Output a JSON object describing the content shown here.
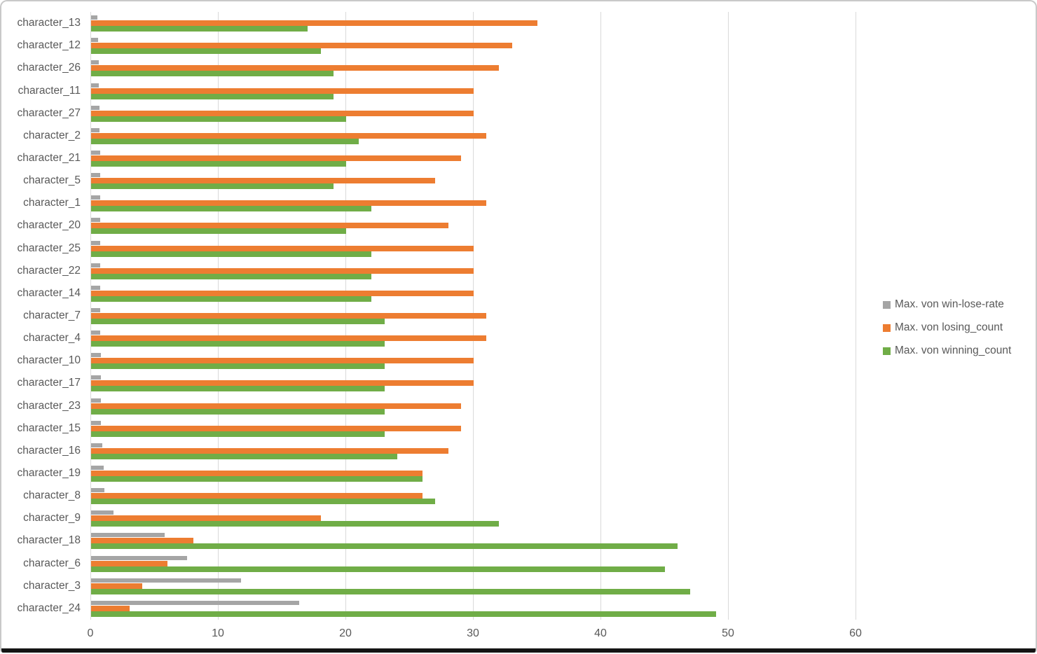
{
  "chart_data": {
    "type": "bar",
    "orientation": "horizontal",
    "title": "",
    "xlabel": "",
    "ylabel": "",
    "xlim": [
      0,
      66
    ],
    "x_ticks": [
      "0",
      "10",
      "20",
      "30",
      "40",
      "50",
      "60"
    ],
    "grid": "vertical",
    "legend_position": "right",
    "categories": [
      "character_13",
      "character_12",
      "character_26",
      "character_11",
      "character_27",
      "character_2",
      "character_21",
      "character_5",
      "character_1",
      "character_20",
      "character_25",
      "character_22",
      "character_14",
      "character_7",
      "character_4",
      "character_10",
      "character_17",
      "character_23",
      "character_15",
      "character_16",
      "character_19",
      "character_8",
      "character_9",
      "character_18",
      "character_6",
      "character_3",
      "character_24"
    ],
    "series": [
      {
        "name": "Max. von win-lose-rate",
        "color": "#a5a5a5",
        "values": [
          0.49,
          0.55,
          0.59,
          0.63,
          0.67,
          0.68,
          0.69,
          0.7,
          0.71,
          0.71,
          0.73,
          0.73,
          0.73,
          0.74,
          0.74,
          0.77,
          0.77,
          0.79,
          0.79,
          0.86,
          1.0,
          1.04,
          1.78,
          5.75,
          7.5,
          11.75,
          16.33
        ]
      },
      {
        "name": "Max. von losing_count",
        "color": "#ed7d31",
        "values": [
          35,
          33,
          32,
          30,
          30,
          31,
          29,
          27,
          31,
          28,
          30,
          30,
          30,
          31,
          31,
          30,
          30,
          29,
          29,
          28,
          26,
          26,
          18,
          8,
          6,
          4,
          3
        ]
      },
      {
        "name": "Max. von winning_count",
        "color": "#70ad47",
        "values": [
          17,
          18,
          19,
          19,
          20,
          21,
          20,
          19,
          22,
          20,
          22,
          22,
          22,
          23,
          23,
          23,
          23,
          23,
          23,
          24,
          26,
          27,
          32,
          46,
          45,
          47,
          49
        ]
      }
    ]
  },
  "colors": {
    "gridline": "#d9d9d9",
    "axis_text": "#595959",
    "frame_border": "#c9c9c9",
    "window_bottom": "#141414",
    "background": "#ffffff"
  }
}
